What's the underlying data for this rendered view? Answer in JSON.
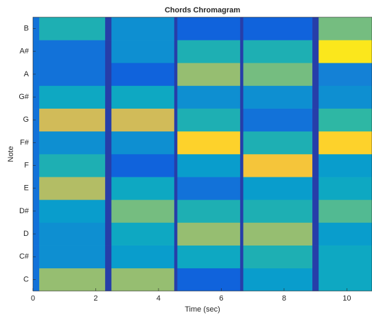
{
  "chart_data": {
    "type": "heatmap",
    "title": "Chords Chromagram",
    "xlabel": "Time (sec)",
    "ylabel": "Note",
    "categories": [
      "C",
      "C#",
      "D",
      "D#",
      "E",
      "F",
      "F#",
      "G",
      "G#",
      "A",
      "A#",
      "B"
    ],
    "bins": [
      0,
      0.2,
      2.3,
      2.5,
      4.5,
      4.6,
      6.6,
      6.7,
      8.9,
      9.1,
      10.8
    ],
    "values": [
      [
        0.2,
        0.65,
        0.05,
        0.65,
        0.05,
        0.15,
        0.05,
        0.35,
        0.05,
        0.4
      ],
      [
        0.2,
        0.3,
        0.05,
        0.35,
        0.05,
        0.4,
        0.05,
        0.45,
        0.05,
        0.4
      ],
      [
        0.2,
        0.3,
        0.05,
        0.4,
        0.05,
        0.65,
        0.05,
        0.65,
        0.05,
        0.35
      ],
      [
        0.2,
        0.35,
        0.05,
        0.6,
        0.05,
        0.45,
        0.05,
        0.45,
        0.05,
        0.55
      ],
      [
        0.2,
        0.7,
        0.05,
        0.4,
        0.05,
        0.2,
        0.05,
        0.35,
        0.05,
        0.4
      ],
      [
        0.2,
        0.45,
        0.05,
        0.15,
        0.05,
        0.35,
        0.05,
        0.85,
        0.05,
        0.35
      ],
      [
        0.2,
        0.3,
        0.05,
        0.3,
        0.05,
        0.9,
        0.05,
        0.45,
        0.05,
        0.9
      ],
      [
        0.2,
        0.75,
        0.05,
        0.75,
        0.05,
        0.45,
        0.05,
        0.2,
        0.05,
        0.5
      ],
      [
        0.2,
        0.4,
        0.05,
        0.4,
        0.05,
        0.3,
        0.05,
        0.3,
        0.05,
        0.3
      ],
      [
        0.2,
        0.2,
        0.05,
        0.15,
        0.05,
        0.65,
        0.05,
        0.6,
        0.05,
        0.25
      ],
      [
        0.2,
        0.2,
        0.05,
        0.3,
        0.05,
        0.45,
        0.05,
        0.45,
        0.05,
        0.95
      ],
      [
        0.2,
        0.45,
        0.05,
        0.3,
        0.05,
        0.15,
        0.05,
        0.15,
        0.05,
        0.6
      ]
    ],
    "colormap": [
      "#352a87",
      "#0f5cdd",
      "#1481d6",
      "#06a4ca",
      "#2eb7a4",
      "#87bf77",
      "#d1bb59",
      "#fec832",
      "#f9fb0e"
    ],
    "xlim": [
      0,
      10.8
    ],
    "xticks": [
      0,
      2,
      4,
      6,
      8,
      10
    ]
  }
}
